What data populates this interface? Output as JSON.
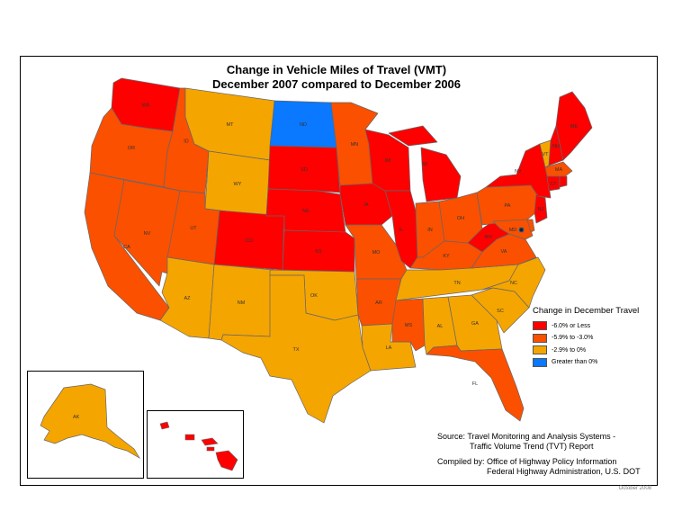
{
  "title": {
    "line1": "Change in Vehicle Miles of Travel (VMT)",
    "line2": "December 2007 compared to December 2006"
  },
  "colors": {
    "cat1": "#ff0000",
    "cat2": "#fa5000",
    "cat3": "#f5a500",
    "cat4": "#0a78ff",
    "border": "#666666"
  },
  "legend": {
    "title": "Change in December Travel",
    "items": [
      {
        "label": "-6.0% or Less",
        "color": "#ff0000"
      },
      {
        "label": "-5.9% to -3.0%",
        "color": "#fa5000"
      },
      {
        "label": "-2.9% to 0%",
        "color": "#f5a500"
      },
      {
        "label": "Greater than 0%",
        "color": "#0a78ff"
      }
    ]
  },
  "source": {
    "line1": "Source: Travel Monitoring and Analysis Systems -",
    "line2": "Traffic Volume Trend (TVT) Report"
  },
  "compiled": {
    "line1": "Compiled by: Office of Highway Policy Information",
    "line2": "Federal Highway Administration, U.S. DOT"
  },
  "date_note": "October 2008",
  "states": {
    "WA": {
      "label": "WA",
      "category": 1
    },
    "OR": {
      "label": "OR",
      "category": 2
    },
    "CA": {
      "label": "CA",
      "category": 2
    },
    "NV": {
      "label": "NV",
      "category": 2
    },
    "ID": {
      "label": "ID",
      "category": 2
    },
    "MT": {
      "label": "MT",
      "category": 3
    },
    "WY": {
      "label": "WY",
      "category": 3
    },
    "UT": {
      "label": "UT",
      "category": 2
    },
    "AZ": {
      "label": "AZ",
      "category": 3
    },
    "CO": {
      "label": "CO",
      "category": 1
    },
    "NM": {
      "label": "NM",
      "category": 3
    },
    "ND": {
      "label": "ND",
      "category": 4
    },
    "SD": {
      "label": "SD",
      "category": 1
    },
    "NE": {
      "label": "NE",
      "category": 1
    },
    "KS": {
      "label": "KS",
      "category": 1
    },
    "OK": {
      "label": "OK",
      "category": 3
    },
    "TX": {
      "label": "TX",
      "category": 3
    },
    "MN": {
      "label": "MN",
      "category": 2
    },
    "IA": {
      "label": "IA",
      "category": 1
    },
    "MO": {
      "label": "MO",
      "category": 2
    },
    "AR": {
      "label": "AR",
      "category": 2
    },
    "LA": {
      "label": "LA",
      "category": 3
    },
    "WI": {
      "label": "WI",
      "category": 1
    },
    "IL": {
      "label": "IL",
      "category": 1
    },
    "MI": {
      "label": "MI",
      "category": 1
    },
    "IN": {
      "label": "IN",
      "category": 2
    },
    "OH": {
      "label": "OH",
      "category": 2
    },
    "KY": {
      "label": "KY",
      "category": 2
    },
    "TN": {
      "label": "TN",
      "category": 3
    },
    "MS": {
      "label": "MS",
      "category": 2
    },
    "AL": {
      "label": "AL",
      "category": 3
    },
    "GA": {
      "label": "GA",
      "category": 3
    },
    "FL": {
      "label": "FL",
      "category": 2
    },
    "SC": {
      "label": "SC",
      "category": 3
    },
    "NC": {
      "label": "NC",
      "category": 3
    },
    "VA": {
      "label": "VA",
      "category": 2
    },
    "WV": {
      "label": "WV",
      "category": 1
    },
    "PA": {
      "label": "PA",
      "category": 2
    },
    "NY": {
      "label": "NY",
      "category": 1
    },
    "VT": {
      "label": "VT",
      "category": 3
    },
    "NH": {
      "label": "NH",
      "category": 1
    },
    "ME": {
      "label": "ME",
      "category": 1
    },
    "MA": {
      "label": "MA",
      "category": 2
    },
    "CT": {
      "label": "CT",
      "category": 1
    },
    "RI": {
      "label": "RI",
      "category": 1
    },
    "NJ": {
      "label": "NJ",
      "category": 1
    },
    "MD": {
      "label": "MD",
      "category": 2
    },
    "DE": {
      "label": "DE",
      "category": 2
    },
    "DC": {
      "label": "DC",
      "category": 4
    },
    "AK": {
      "label": "AK",
      "category": 3
    },
    "HI": {
      "label": "HI",
      "category": 1
    }
  }
}
